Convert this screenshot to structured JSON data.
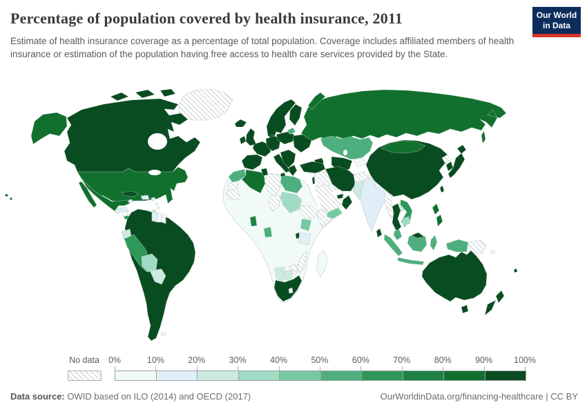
{
  "header": {
    "title": "Percentage of population covered by health insurance, 2011",
    "subtitle": "Estimate of health insurance coverage as a percentage of total population. Coverage includes affiliated members of health insurance or estimation of the population having free access to health care services provided by the State."
  },
  "logo": {
    "line1": "Our World",
    "line2": "in Data",
    "bg_color": "#0c2d5c",
    "accent_color": "#d7342a"
  },
  "legend": {
    "no_data_label": "No data",
    "ticks": [
      "0%",
      "10%",
      "20%",
      "30%",
      "40%",
      "50%",
      "60%",
      "70%",
      "80%",
      "90%",
      "100%"
    ]
  },
  "footer": {
    "source_label": "Data source:",
    "source_text": " OWID based on ILO (2014) and OECD (2017)",
    "credit": "OurWorldinData.org/financing-healthcare | CC BY"
  },
  "chart_data": {
    "type": "choropleth",
    "title": "Percentage of population covered by health insurance",
    "year": 2011,
    "unit": "% of population",
    "no_data_style": "hatched",
    "legend_bins": [
      {
        "range": "0-10%",
        "color": "#f2faf7"
      },
      {
        "range": "10-20%",
        "color": "#e0eef7"
      },
      {
        "range": "20-30%",
        "color": "#cdeae0"
      },
      {
        "range": "30-40%",
        "color": "#a2dbc4"
      },
      {
        "range": "40-50%",
        "color": "#75c8a2"
      },
      {
        "range": "50-60%",
        "color": "#4fae7e"
      },
      {
        "range": "60-70%",
        "color": "#2f9858"
      },
      {
        "range": "70-80%",
        "color": "#1d8144"
      },
      {
        "range": "80-90%",
        "color": "#12702f"
      },
      {
        "range": "90-100%",
        "color": "#0a4c21"
      }
    ],
    "countries": [
      {
        "name": "Canada",
        "coverage": "90-100%"
      },
      {
        "name": "United States",
        "coverage": "80-90%"
      },
      {
        "name": "Greenland",
        "coverage": "No data"
      },
      {
        "name": "Mexico",
        "coverage": "80-90%"
      },
      {
        "name": "Guatemala",
        "coverage": "10-20%"
      },
      {
        "name": "Honduras",
        "coverage": "10-20%"
      },
      {
        "name": "Nicaragua",
        "coverage": "0-10%"
      },
      {
        "name": "Costa Rica",
        "coverage": "60-70%"
      },
      {
        "name": "Panama",
        "coverage": "50-60%"
      },
      {
        "name": "Cuba",
        "coverage": "90-100%"
      },
      {
        "name": "Jamaica",
        "coverage": "10-20%"
      },
      {
        "name": "Dominican Republic",
        "coverage": "10-20%"
      },
      {
        "name": "Puerto Rico",
        "coverage": "10-20%"
      },
      {
        "name": "Trinidad and Tobago",
        "coverage": "20-30%"
      },
      {
        "name": "Colombia",
        "coverage": "90-100%"
      },
      {
        "name": "Venezuela",
        "coverage": "90-100%"
      },
      {
        "name": "Ecuador",
        "coverage": "20-30%"
      },
      {
        "name": "Peru",
        "coverage": "60-70%"
      },
      {
        "name": "Bolivia",
        "coverage": "30-40%"
      },
      {
        "name": "Paraguay",
        "coverage": "20-30%"
      },
      {
        "name": "Brazil",
        "coverage": "90-100%"
      },
      {
        "name": "Argentina",
        "coverage": "90-100%"
      },
      {
        "name": "Chile",
        "coverage": "90-100%"
      },
      {
        "name": "Uruguay",
        "coverage": "90-100%"
      },
      {
        "name": "Guyana",
        "coverage": "10-20%"
      },
      {
        "name": "Suriname",
        "coverage": "0-10%"
      },
      {
        "name": "French Guiana",
        "coverage": "No data"
      },
      {
        "name": "Falkland Islands",
        "coverage": "No data"
      },
      {
        "name": "United Kingdom",
        "coverage": "90-100%"
      },
      {
        "name": "Ireland",
        "coverage": "90-100%"
      },
      {
        "name": "Iceland",
        "coverage": "90-100%"
      },
      {
        "name": "France",
        "coverage": "90-100%"
      },
      {
        "name": "Spain",
        "coverage": "90-100%"
      },
      {
        "name": "Portugal",
        "coverage": "90-100%"
      },
      {
        "name": "Germany",
        "coverage": "90-100%"
      },
      {
        "name": "Netherlands",
        "coverage": "90-100%"
      },
      {
        "name": "Belgium",
        "coverage": "90-100%"
      },
      {
        "name": "Switzerland",
        "coverage": "90-100%"
      },
      {
        "name": "Austria",
        "coverage": "90-100%"
      },
      {
        "name": "Czechia",
        "coverage": "90-100%"
      },
      {
        "name": "Hungary",
        "coverage": "90-100%"
      },
      {
        "name": "Italy",
        "coverage": "90-100%"
      },
      {
        "name": "Serbia",
        "coverage": "90-100%"
      },
      {
        "name": "Greece",
        "coverage": "90-100%"
      },
      {
        "name": "Poland",
        "coverage": "90-100%"
      },
      {
        "name": "Denmark",
        "coverage": "90-100%"
      },
      {
        "name": "Norway",
        "coverage": "90-100%"
      },
      {
        "name": "Sweden",
        "coverage": "90-100%"
      },
      {
        "name": "Finland",
        "coverage": "90-100%"
      },
      {
        "name": "Latvia",
        "coverage": "50-60%"
      },
      {
        "name": "Ukraine",
        "coverage": "90-100%"
      },
      {
        "name": "Belarus",
        "coverage": "90-100%"
      },
      {
        "name": "Romania",
        "coverage": "90-100%"
      },
      {
        "name": "Georgia",
        "coverage": "90-100%"
      },
      {
        "name": "Russia",
        "coverage": "80-90%"
      },
      {
        "name": "Kazakhstan",
        "coverage": "50-60%"
      },
      {
        "name": "Uzbekistan",
        "coverage": "90-100%"
      },
      {
        "name": "Turkmenistan",
        "coverage": "90-100%"
      },
      {
        "name": "Kyrgyzstan",
        "coverage": "0-10%"
      },
      {
        "name": "Tajikistan",
        "coverage": "0-10%"
      },
      {
        "name": "Turkey",
        "coverage": "90-100%"
      },
      {
        "name": "Syria",
        "coverage": "No data"
      },
      {
        "name": "Iraq",
        "coverage": "No data"
      },
      {
        "name": "Israel",
        "coverage": "90-100%"
      },
      {
        "name": "Saudi Arabia",
        "coverage": "No data"
      },
      {
        "name": "Yemen",
        "coverage": "40-50%"
      },
      {
        "name": "Oman",
        "coverage": "90-100%"
      },
      {
        "name": "United Arab Emirates",
        "coverage": "90-100%"
      },
      {
        "name": "Iran",
        "coverage": "90-100%"
      },
      {
        "name": "Afghanistan",
        "coverage": "No data"
      },
      {
        "name": "Pakistan",
        "coverage": "20-30%"
      },
      {
        "name": "India",
        "coverage": "10-20%"
      },
      {
        "name": "Nepal",
        "coverage": "No data"
      },
      {
        "name": "Bangladesh",
        "coverage": "10-20%"
      },
      {
        "name": "Sri Lanka",
        "coverage": "90-100%"
      },
      {
        "name": "China",
        "coverage": "90-100%"
      },
      {
        "name": "Mongolia",
        "coverage": "80-90%"
      },
      {
        "name": "North Korea",
        "coverage": "No data"
      },
      {
        "name": "South Korea",
        "coverage": "90-100%"
      },
      {
        "name": "Japan",
        "coverage": "90-100%"
      },
      {
        "name": "Taiwan",
        "coverage": "90-100%"
      },
      {
        "name": "Myanmar",
        "coverage": "No data"
      },
      {
        "name": "Laos",
        "coverage": "20-30%"
      },
      {
        "name": "Thailand",
        "coverage": "90-100%"
      },
      {
        "name": "Vietnam",
        "coverage": "60-70%"
      },
      {
        "name": "Cambodia",
        "coverage": "30-40%"
      },
      {
        "name": "Malaysia",
        "coverage": "50-60%"
      },
      {
        "name": "Brunei",
        "coverage": "90-100%"
      },
      {
        "name": "Indonesia",
        "coverage": "50-60%"
      },
      {
        "name": "Philippines",
        "coverage": "80-90%"
      },
      {
        "name": "Papua New Guinea",
        "coverage": "No data"
      },
      {
        "name": "Solomon Islands",
        "coverage": "No data"
      },
      {
        "name": "Fiji",
        "coverage": "90-100%"
      },
      {
        "name": "Australia",
        "coverage": "90-100%"
      },
      {
        "name": "New Zealand",
        "coverage": "90-100%"
      },
      {
        "name": "Morocco",
        "coverage": "50-60%"
      },
      {
        "name": "Western Sahara",
        "coverage": "No data"
      },
      {
        "name": "Mauritania",
        "coverage": "No data"
      },
      {
        "name": "Algeria",
        "coverage": "80-90%"
      },
      {
        "name": "Tunisia",
        "coverage": "90-100%"
      },
      {
        "name": "Libya",
        "coverage": "No data"
      },
      {
        "name": "Egypt",
        "coverage": "50-60%"
      },
      {
        "name": "Sudan",
        "coverage": "30-40%"
      },
      {
        "name": "Chad",
        "coverage": "No data"
      },
      {
        "name": "Ethiopia",
        "coverage": "No data"
      },
      {
        "name": "Somalia",
        "coverage": "No data"
      },
      {
        "name": "Ghana",
        "coverage": "70-80%"
      },
      {
        "name": "Gabon",
        "coverage": "50-60%"
      },
      {
        "name": "Kenya",
        "coverage": "40-50%"
      },
      {
        "name": "Rwanda",
        "coverage": "90-100%"
      },
      {
        "name": "Tanzania",
        "coverage": "10-20%"
      },
      {
        "name": "Mozambique",
        "coverage": "No data"
      },
      {
        "name": "Zimbabwe",
        "coverage": "No data"
      },
      {
        "name": "Namibia",
        "coverage": "20-30%"
      },
      {
        "name": "Botswana",
        "coverage": "20-30%"
      },
      {
        "name": "South Africa",
        "coverage": "90-100%"
      },
      {
        "name": "Lesotho",
        "coverage": "0-10%"
      },
      {
        "name": "Madagascar",
        "coverage": "0-10%"
      }
    ]
  }
}
